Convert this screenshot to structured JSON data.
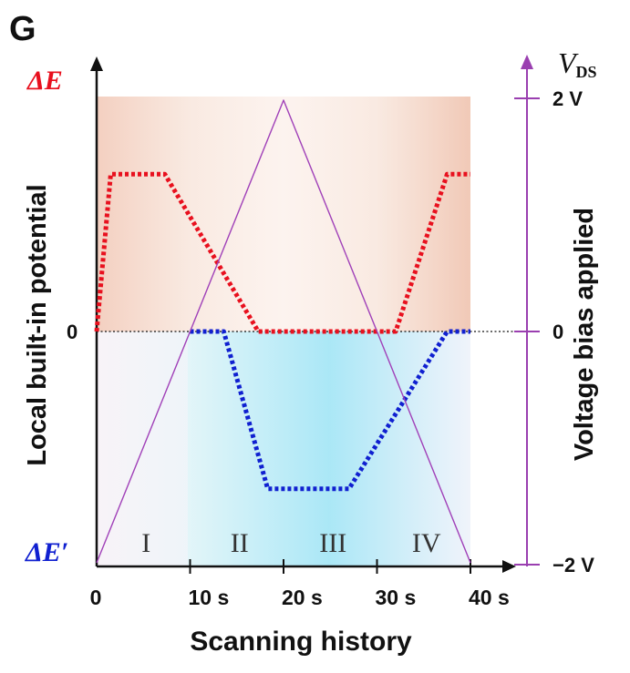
{
  "panel_label": "G",
  "chart_data": {
    "type": "line",
    "xlabel": "Scanning history",
    "ylabel_left": "Local built-in potential",
    "ylabel_right": "Voltage bias applied",
    "left_top_label": "ΔE",
    "left_bottom_label": "ΔE′",
    "left_zero_label": "0",
    "right_axis_title_main": "V",
    "right_axis_title_sub": "DS",
    "right_ticks": [
      {
        "value": 2,
        "label": "2 V"
      },
      {
        "value": 0,
        "label": "0"
      },
      {
        "value": -2,
        "label": "−2 V"
      }
    ],
    "x_ticks": [
      {
        "value": 0,
        "label": "0"
      },
      {
        "value": 10,
        "label": "10 s"
      },
      {
        "value": 20,
        "label": "20 s"
      },
      {
        "value": 30,
        "label": "30 s"
      },
      {
        "value": 40,
        "label": "40 s"
      }
    ],
    "xlim": [
      0,
      40
    ],
    "ylim": [
      -1,
      1
    ],
    "regions": [
      {
        "label": "I",
        "x": [
          0,
          10
        ]
      },
      {
        "label": "II",
        "x": [
          10,
          20
        ]
      },
      {
        "label": "III",
        "x": [
          20,
          30
        ]
      },
      {
        "label": "IV",
        "x": [
          30,
          40
        ]
      }
    ],
    "series": [
      {
        "name": "ΔE",
        "color": "#e8101e",
        "style": "dotted",
        "points": [
          [
            0,
            0
          ],
          [
            1.5,
            0.69
          ],
          [
            7.3,
            0.69
          ],
          [
            17.3,
            0
          ],
          [
            32,
            0
          ],
          [
            37.5,
            0.69
          ],
          [
            40,
            0.69
          ]
        ]
      },
      {
        "name": "ΔE′",
        "color": "#1020d0",
        "style": "dotted",
        "points": [
          [
            10,
            0
          ],
          [
            13.6,
            0
          ],
          [
            18.3,
            -0.69
          ],
          [
            27,
            -0.69
          ],
          [
            37.5,
            0
          ],
          [
            40,
            0
          ]
        ]
      },
      {
        "name": "VDS",
        "color": "#a040b8",
        "style": "solid",
        "points": [
          [
            0,
            -2
          ],
          [
            20,
            2
          ],
          [
            40,
            -2
          ]
        ]
      }
    ],
    "colors": {
      "positive_shade": "#f5d6c8",
      "negative_shade": "#b6e8f4",
      "right_axis": "#9a3fb0",
      "zero_line": "#111111"
    }
  }
}
